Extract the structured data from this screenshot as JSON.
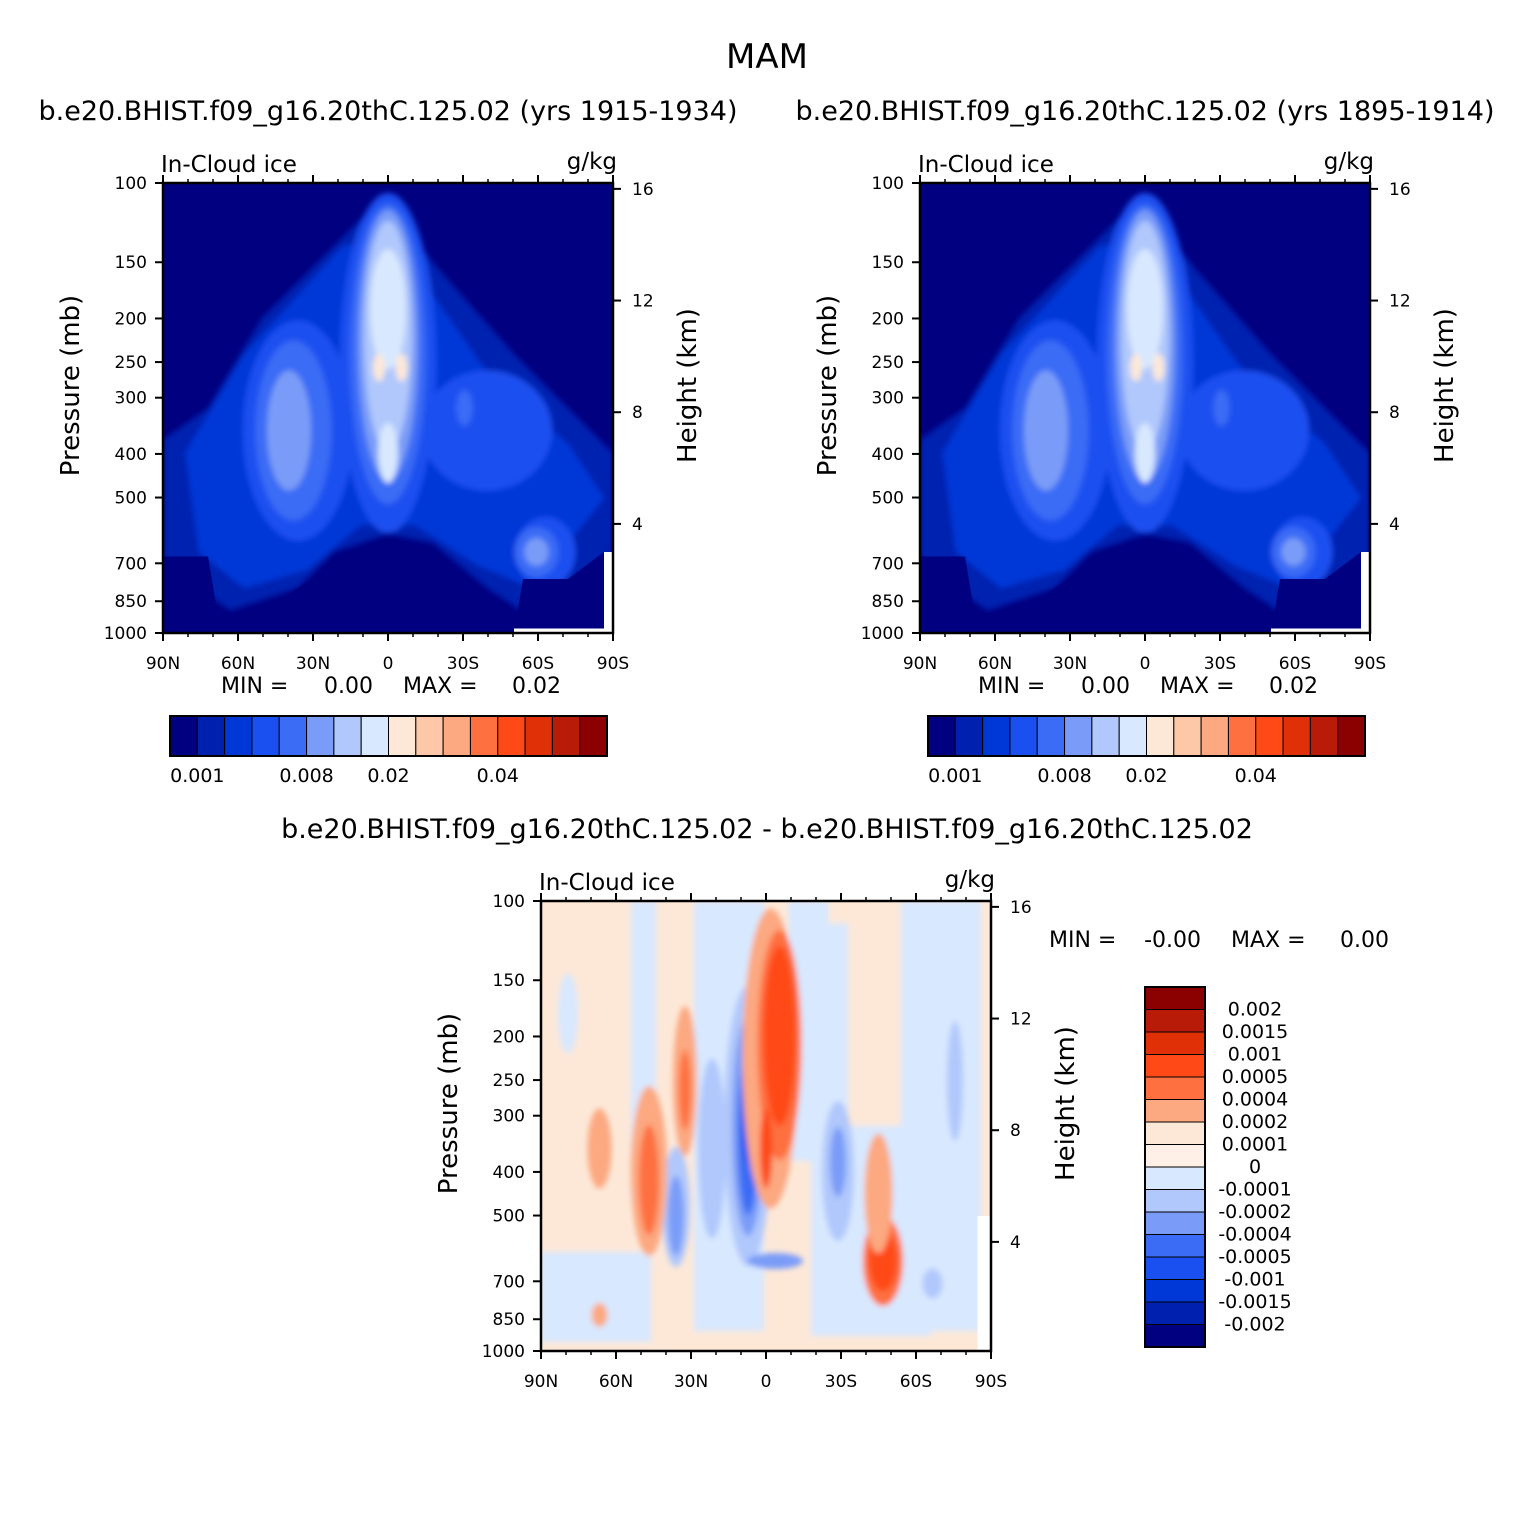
{
  "figure": {
    "title": "MAM"
  },
  "chart_data": [
    {
      "type": "heatmap",
      "panel": "top-left",
      "title": "b.e20.BHIST.f09_g16.20thC.125.02 (yrs 1915-1934)",
      "left_label": "In-Cloud ice",
      "units": "g/kg",
      "ylabel": "Pressure (mb)",
      "y2label": "Height (km)",
      "x_ticks": [
        "90N",
        "60N",
        "30N",
        "0",
        "30S",
        "60S",
        "90S"
      ],
      "y_ticks": [
        "100",
        "150",
        "200",
        "250",
        "300",
        "400",
        "500",
        "700",
        "850",
        "1000"
      ],
      "y2_ticks": [
        "16",
        "12",
        "8",
        "4"
      ],
      "stats": {
        "min_label": "MIN =",
        "min": "0.00",
        "max_label": "MAX =",
        "max": "0.02"
      },
      "colorbar": {
        "orientation": "horizontal",
        "colors": [
          "#000080",
          "#0020b0",
          "#0038d8",
          "#1a50f0",
          "#3a6cf5",
          "#7a9cf8",
          "#b0c8fc",
          "#d8e8ff",
          "#fde8d8",
          "#fcc8a8",
          "#fca880",
          "#ff7040",
          "#ff4a18",
          "#e03008",
          "#b81c08",
          "#8b0000"
        ],
        "tick_labels": [
          "0.001",
          "0.008",
          "0.02",
          "0.04"
        ]
      }
    },
    {
      "type": "heatmap",
      "panel": "top-right",
      "title": "b.e20.BHIST.f09_g16.20thC.125.02 (yrs 1895-1914)",
      "left_label": "In-Cloud ice",
      "units": "g/kg",
      "ylabel": "Pressure (mb)",
      "y2label": "Height (km)",
      "x_ticks": [
        "90N",
        "60N",
        "30N",
        "0",
        "30S",
        "60S",
        "90S"
      ],
      "y_ticks": [
        "100",
        "150",
        "200",
        "250",
        "300",
        "400",
        "500",
        "700",
        "850",
        "1000"
      ],
      "y2_ticks": [
        "16",
        "12",
        "8",
        "4"
      ],
      "stats": {
        "min_label": "MIN =",
        "min": "0.00",
        "max_label": "MAX =",
        "max": "0.02"
      },
      "colorbar": {
        "orientation": "horizontal",
        "colors": [
          "#000080",
          "#0020b0",
          "#0038d8",
          "#1a50f0",
          "#3a6cf5",
          "#7a9cf8",
          "#b0c8fc",
          "#d8e8ff",
          "#fde8d8",
          "#fcc8a8",
          "#fca880",
          "#ff7040",
          "#ff4a18",
          "#e03008",
          "#b81c08",
          "#8b0000"
        ],
        "tick_labels": [
          "0.001",
          "0.008",
          "0.02",
          "0.04"
        ]
      }
    },
    {
      "type": "heatmap",
      "panel": "bottom",
      "title": "b.e20.BHIST.f09_g16.20thC.125.02 - b.e20.BHIST.f09_g16.20thC.125.02",
      "left_label": "In-Cloud ice",
      "units": "g/kg",
      "ylabel": "Pressure (mb)",
      "y2label": "Height (km)",
      "x_ticks": [
        "90N",
        "60N",
        "30N",
        "0",
        "30S",
        "60S",
        "90S"
      ],
      "y_ticks": [
        "100",
        "150",
        "200",
        "250",
        "300",
        "400",
        "500",
        "700",
        "850",
        "1000"
      ],
      "y2_ticks": [
        "16",
        "12",
        "8",
        "4"
      ],
      "stats": {
        "min_label": "MIN =",
        "min": "-0.00",
        "max_label": "MAX =",
        "max": "0.00"
      },
      "colorbar": {
        "orientation": "vertical",
        "colors": [
          "#8b0000",
          "#b81c08",
          "#e03008",
          "#ff4a18",
          "#ff7040",
          "#fca880",
          "#fde8d8",
          "#fef0e6",
          "#d8e8ff",
          "#b0c8fc",
          "#7a9cf8",
          "#3a6cf5",
          "#1a50f0",
          "#0038d8",
          "#0020b0",
          "#000080"
        ],
        "tick_labels": [
          "0.002",
          "0.0015",
          "0.001",
          "0.0005",
          "0.0004",
          "0.0002",
          "0.0001",
          "0",
          "-0.0001",
          "-0.0002",
          "-0.0004",
          "-0.0005",
          "-0.001",
          "-0.0015",
          "-0.002"
        ]
      }
    }
  ]
}
